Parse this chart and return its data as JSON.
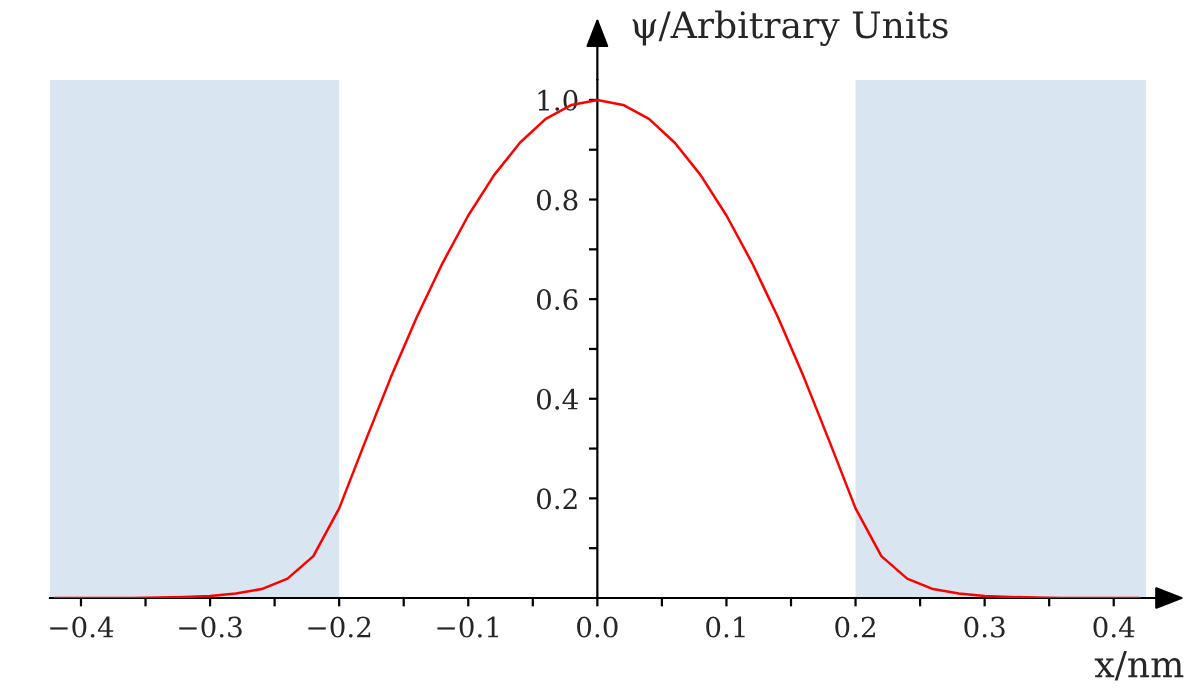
{
  "chart_data": {
    "type": "line",
    "xlabel": "x/nm",
    "ylabel": "ψ/Arbitrary Units",
    "x": [
      -0.42,
      -0.4,
      -0.38,
      -0.36,
      -0.34,
      -0.32,
      -0.3,
      -0.28,
      -0.26,
      -0.24,
      -0.22,
      -0.2,
      -0.18,
      -0.16,
      -0.14,
      -0.12,
      -0.1,
      -0.08,
      -0.06,
      -0.04,
      -0.02,
      0,
      0.02,
      0.04,
      0.06,
      0.08,
      0.1,
      0.12,
      0.14,
      0.16,
      0.18,
      0.2,
      0.22,
      0.24,
      0.26,
      0.28,
      0.3,
      0.32,
      0.34,
      0.36,
      0.38,
      0.4,
      0.42
    ],
    "series": [
      {
        "color": "#ff0000",
        "values": [
          0,
          0,
          0,
          0,
          0.001,
          0.002,
          0.004,
          0.009,
          0.018,
          0.039,
          0.084,
          0.18,
          0.313,
          0.443,
          0.563,
          0.672,
          0.768,
          0.849,
          0.914,
          0.962,
          0.99,
          1,
          0.99,
          0.962,
          0.914,
          0.849,
          0.768,
          0.672,
          0.563,
          0.443,
          0.313,
          0.18,
          0.084,
          0.039,
          0.018,
          0.009,
          0.004,
          0.002,
          0.001,
          0,
          0,
          0,
          0
        ]
      }
    ],
    "xlim": [
      -0.424,
      0.425
    ],
    "ylim": [
      0,
      1.04
    ],
    "xticks": [
      {
        "value": -0.4,
        "label": "−0.4"
      },
      {
        "value": -0.35,
        "label": null
      },
      {
        "value": -0.3,
        "label": "−0.3"
      },
      {
        "value": -0.25,
        "label": null
      },
      {
        "value": -0.2,
        "label": "−0.2"
      },
      {
        "value": -0.15,
        "label": null
      },
      {
        "value": -0.1,
        "label": "−0.1"
      },
      {
        "value": -0.05,
        "label": null
      },
      {
        "value": 0,
        "label": "0.0"
      },
      {
        "value": 0.05,
        "label": null
      },
      {
        "value": 0.1,
        "label": "0.1"
      },
      {
        "value": 0.15,
        "label": null
      },
      {
        "value": 0.2,
        "label": "0.2"
      },
      {
        "value": 0.25,
        "label": null
      },
      {
        "value": 0.3,
        "label": "0.3"
      },
      {
        "value": 0.35,
        "label": null
      },
      {
        "value": 0.4,
        "label": "0.4"
      }
    ],
    "yticks": [
      {
        "value": 0.1,
        "label": null
      },
      {
        "value": 0.2,
        "label": "0.2"
      },
      {
        "value": 0.3,
        "label": null
      },
      {
        "value": 0.4,
        "label": "0.4"
      },
      {
        "value": 0.5,
        "label": null
      },
      {
        "value": 0.6,
        "label": "0.6"
      },
      {
        "value": 0.7,
        "label": null
      },
      {
        "value": 0.8,
        "label": "0.8"
      },
      {
        "value": 0.9,
        "label": null
      },
      {
        "value": 1.0,
        "label": "1.0"
      }
    ],
    "bands": [
      {
        "axis": "x",
        "from": -0.424,
        "to": -0.2,
        "color": "#d9e5f0"
      },
      {
        "axis": "x",
        "from": 0.2,
        "to": 0.425,
        "color": "#d9e5f0"
      }
    ],
    "grid": false,
    "legend": false,
    "marker": "none",
    "line_style": "solid"
  }
}
